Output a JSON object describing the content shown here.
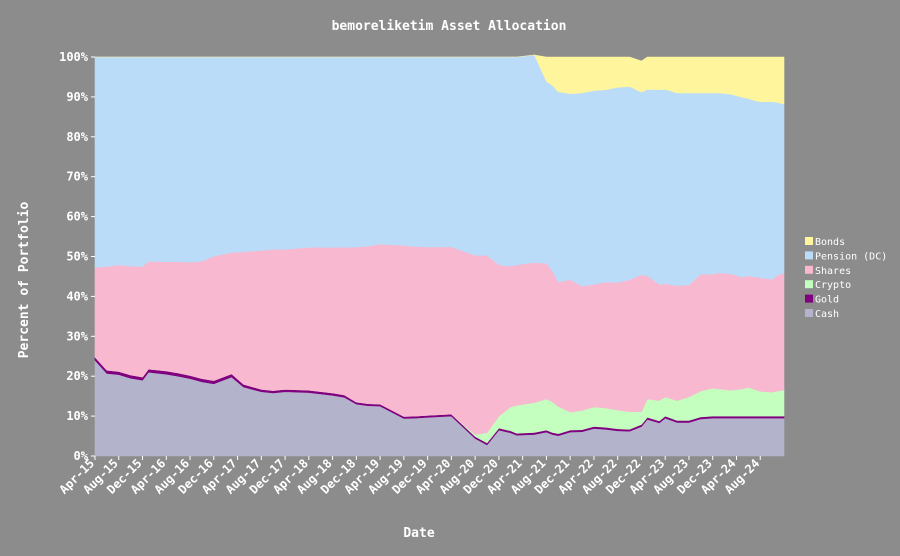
{
  "chart_data": {
    "type": "area",
    "stacked": true,
    "percent_stacked": true,
    "title": "bemoreliketim Asset Allocation",
    "xlabel": "Date",
    "ylabel": "Percent of Portfolio",
    "ylim": [
      0,
      100
    ],
    "y_ticks": [
      "0%",
      "10%",
      "20%",
      "30%",
      "40%",
      "50%",
      "60%",
      "70%",
      "80%",
      "90%",
      "100%"
    ],
    "x_range": [
      "2015-04",
      "2024-12"
    ],
    "x_ticks": [
      "Apr-15",
      "Aug-15",
      "Dec-15",
      "Apr-16",
      "Aug-16",
      "Dec-16",
      "Apr-17",
      "Aug-17",
      "Dec-17",
      "Apr-18",
      "Aug-18",
      "Dec-18",
      "Apr-19",
      "Aug-19",
      "Dec-19",
      "Apr-20",
      "Aug-20",
      "Dec-20",
      "Apr-21",
      "Aug-21",
      "Dec-21",
      "Apr-22",
      "Aug-22",
      "Dec-22",
      "Apr-23",
      "Aug-23",
      "Dec-23",
      "Apr-24",
      "Aug-24"
    ],
    "x": [
      "2015-04",
      "2015-06",
      "2015-08",
      "2015-10",
      "2015-12",
      "2016-01",
      "2016-04",
      "2016-06",
      "2016-08",
      "2016-10",
      "2016-12",
      "2017-03",
      "2017-05",
      "2017-08",
      "2017-10",
      "2017-12",
      "2018-04",
      "2018-08",
      "2018-10",
      "2018-12",
      "2019-02",
      "2019-04",
      "2019-08",
      "2019-10",
      "2019-12",
      "2020-04",
      "2020-08",
      "2020-10",
      "2020-12",
      "2021-02",
      "2021-03",
      "2021-06",
      "2021-08",
      "2021-09",
      "2021-10",
      "2021-12",
      "2022-02",
      "2022-04",
      "2022-06",
      "2022-08",
      "2022-10",
      "2022-12",
      "2023-01",
      "2023-03",
      "2023-04",
      "2023-06",
      "2023-08",
      "2023-10",
      "2023-12",
      "2024-01",
      "2024-03",
      "2024-05",
      "2024-06",
      "2024-07",
      "2024-08",
      "2024-10",
      "2024-11",
      "2024-12"
    ],
    "legend_position": "right",
    "grid": false,
    "series": [
      {
        "name": "Cash",
        "color": "#b3b3cc",
        "values": [
          24.0,
          20.7,
          20.4,
          19.5,
          19.0,
          21.0,
          20.5,
          20.0,
          19.4,
          18.6,
          18.1,
          19.8,
          17.3,
          16.1,
          15.8,
          16.1,
          15.9,
          15.2,
          14.7,
          13.0,
          12.6,
          12.5,
          9.4,
          9.5,
          9.7,
          10.0,
          4.4,
          2.8,
          6.5,
          5.8,
          5.2,
          5.4,
          6.0,
          5.4,
          5.1,
          6.0,
          6.1,
          6.9,
          6.7,
          6.3,
          6.2,
          7.4,
          9.2,
          8.3,
          9.5,
          8.4,
          8.4,
          9.3,
          9.5,
          9.5,
          9.5,
          9.5,
          9.5,
          9.5,
          9.5,
          9.5,
          9.5,
          9.5
        ]
      },
      {
        "name": "Gold",
        "color": "#800080",
        "values": [
          0.8,
          0.8,
          0.8,
          0.8,
          0.8,
          0.8,
          0.8,
          0.8,
          0.8,
          0.8,
          0.8,
          0.8,
          0.7,
          0.6,
          0.6,
          0.6,
          0.6,
          0.6,
          0.6,
          0.5,
          0.5,
          0.5,
          0.5,
          0.5,
          0.5,
          0.5,
          0.5,
          0.5,
          0.5,
          0.5,
          0.5,
          0.5,
          0.5,
          0.5,
          0.5,
          0.5,
          0.5,
          0.5,
          0.5,
          0.5,
          0.5,
          0.5,
          0.5,
          0.5,
          0.5,
          0.5,
          0.5,
          0.5,
          0.5,
          0.5,
          0.5,
          0.5,
          0.5,
          0.5,
          0.5,
          0.5,
          0.5,
          0.5
        ]
      },
      {
        "name": "Crypto",
        "color": "#c4ffbf",
        "values": [
          0,
          0,
          0,
          0,
          0,
          0,
          0,
          0,
          0,
          0,
          0,
          0,
          0,
          0,
          0,
          0,
          0,
          0,
          0,
          0,
          0,
          0,
          0,
          0,
          0,
          0,
          0.5,
          2.5,
          3.0,
          6.0,
          7.0,
          7.5,
          7.8,
          7.7,
          6.8,
          4.5,
          4.8,
          4.9,
          4.8,
          4.7,
          4.4,
          3.2,
          4.6,
          5.1,
          4.8,
          5.0,
          5.9,
          6.5,
          7.0,
          6.8,
          6.5,
          6.8,
          7.2,
          6.7,
          6.2,
          6.0,
          6.3,
          6.5
        ]
      },
      {
        "name": "Shares",
        "color": "#f8b8d0",
        "values": [
          22.5,
          26.0,
          26.7,
          27.3,
          27.7,
          27.0,
          27.4,
          27.9,
          28.4,
          29.4,
          31.2,
          30.4,
          33.2,
          34.8,
          35.4,
          35.1,
          35.8,
          36.5,
          37.0,
          38.9,
          39.5,
          40.1,
          42.9,
          42.5,
          42.2,
          41.9,
          44.9,
          44.5,
          37.9,
          35.3,
          35.2,
          35.1,
          34.0,
          32.8,
          31.2,
          33.2,
          31.2,
          30.7,
          31.6,
          32.0,
          33.1,
          34.3,
          30.9,
          29.1,
          28.4,
          28.8,
          28.1,
          29.3,
          28.6,
          29.1,
          29.2,
          28.0,
          28.0,
          28.2,
          28.5,
          28.3,
          29.1,
          29.3
        ]
      },
      {
        "name": "Pension (DC)",
        "color": "#bbdcf8",
        "values": [
          52.7,
          52.5,
          52.1,
          52.4,
          52.5,
          51.2,
          51.3,
          51.3,
          51.4,
          51.2,
          49.9,
          49.0,
          48.8,
          48.5,
          48.2,
          48.2,
          47.7,
          47.7,
          47.7,
          47.6,
          47.4,
          46.9,
          47.2,
          47.5,
          47.6,
          47.6,
          49.7,
          49.7,
          52.1,
          52.4,
          52.1,
          52.0,
          45.6,
          46.5,
          47.7,
          46.6,
          48.4,
          48.6,
          48.2,
          48.9,
          48.4,
          45.8,
          46.7,
          48.8,
          48.7,
          48.3,
          48.1,
          45.4,
          45.4,
          45.1,
          45.0,
          45.1,
          44.4,
          44.2,
          44.1,
          44.5,
          43.2,
          42.4
        ]
      },
      {
        "name": "Bonds",
        "color": "#fff59d",
        "values": [
          0,
          0,
          0,
          0,
          0,
          0,
          0,
          0,
          0,
          0,
          0,
          0,
          0,
          0,
          0,
          0,
          0,
          0,
          0,
          0,
          0,
          0,
          0,
          0,
          0,
          0,
          0,
          0,
          0,
          0,
          0,
          0,
          6.1,
          7.1,
          8.7,
          9.2,
          9.0,
          8.4,
          8.2,
          7.6,
          7.4,
          7.8,
          8.1,
          8.2,
          8.1,
          9.0,
          9.0,
          9.0,
          9.0,
          9.0,
          9.3,
          10.1,
          10.4,
          10.9,
          11.2,
          11.2,
          11.4,
          11.8
        ]
      }
    ]
  }
}
